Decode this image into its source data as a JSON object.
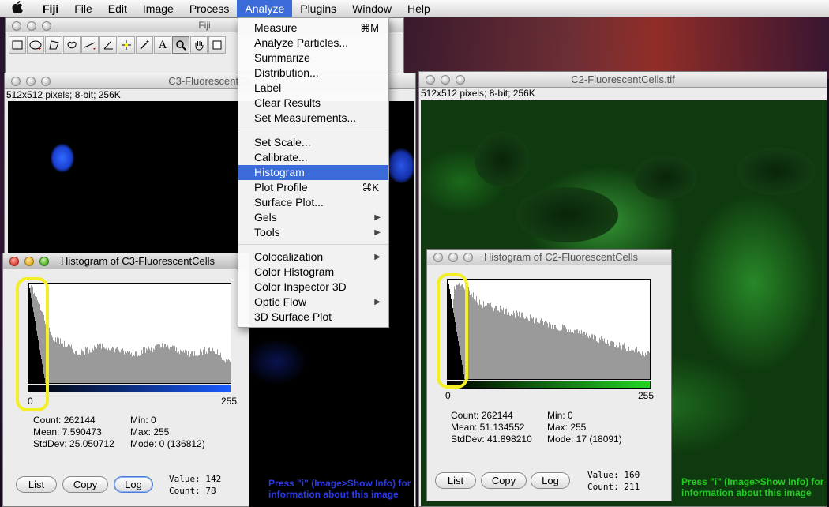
{
  "menubar": {
    "apple": "",
    "items": [
      "Fiji",
      "File",
      "Edit",
      "Image",
      "Process",
      "Analyze",
      "Plugins",
      "Window",
      "Help"
    ],
    "active": "Analyze"
  },
  "toolbar_window": {
    "title": "Fiji",
    "tools": [
      "rectangle-tool",
      "oval-tool",
      "polygon-tool",
      "freehand-tool",
      "line-tool",
      "angle-tool",
      "point-tool",
      "wand-tool",
      "text-tool",
      "magnifier-tool",
      "hand-tool",
      "dropper-tool"
    ],
    "text_tool_glyph": "A"
  },
  "analyze_menu": {
    "items": [
      {
        "label": "Measure",
        "shortcut": "⌘M"
      },
      {
        "label": "Analyze Particles..."
      },
      {
        "label": "Summarize"
      },
      {
        "label": "Distribution..."
      },
      {
        "label": "Label"
      },
      {
        "label": "Clear Results"
      },
      {
        "label": "Set Measurements..."
      },
      {
        "sep": true
      },
      {
        "label": "Set Scale..."
      },
      {
        "label": "Calibrate..."
      },
      {
        "label": "Histogram",
        "highlighted": true
      },
      {
        "label": "Plot Profile",
        "shortcut": "⌘K"
      },
      {
        "label": "Surface Plot..."
      },
      {
        "label": "Gels",
        "submenu": true
      },
      {
        "label": "Tools",
        "submenu": true
      },
      {
        "sep": true
      },
      {
        "label": "Colocalization",
        "submenu": true
      },
      {
        "label": "Color Histogram"
      },
      {
        "label": "Color Inspector 3D"
      },
      {
        "label": "Optic Flow",
        "submenu": true
      },
      {
        "label": "3D Surface Plot"
      }
    ],
    "submenu_arrow": "▶"
  },
  "c3_window": {
    "title": "C3-FluorescentCe",
    "info": "512x512 pixels; 8-bit; 256K"
  },
  "c2_window": {
    "title": "C2-FluorescentCells.tif",
    "info": "512x512 pixels; 8-bit; 256K"
  },
  "hist_c3": {
    "title": "Histogram of C3-FluorescentCells",
    "axis_min": "0",
    "axis_max": "255",
    "lut_color": "#1a5cff",
    "stats": {
      "count": "Count: 262144",
      "mean": "Mean: 7.590473",
      "stddev": "StdDev: 25.050712",
      "min": "Min: 0",
      "max": "Max: 255",
      "mode": "Mode: 0 (136812)"
    },
    "buttons": {
      "list": "List",
      "copy": "Copy",
      "log": "Log"
    },
    "value": "Value: 142",
    "count": "Count: 78",
    "hint": "Press \"i\" (Image>Show Info) for information about this image",
    "hint_color": "#2a3ae8"
  },
  "hist_c2": {
    "title": "Histogram of C2-FluorescentCells",
    "axis_min": "0",
    "axis_max": "255",
    "lut_color": "#22d622",
    "stats": {
      "count": "Count: 262144",
      "mean": "Mean: 51.134552",
      "stddev": "StdDev: 41.898210",
      "min": "Min: 0",
      "max": "Max: 255",
      "mode": "Mode: 17 (18091)"
    },
    "buttons": {
      "list": "List",
      "copy": "Copy",
      "log": "Log"
    },
    "value": "Value: 160",
    "count": "Count: 211",
    "hint": "Press \"i\" (Image>Show Info) for information about this image",
    "hint_color": "#22cc22"
  },
  "colors": {
    "highlight": "#3a6bd8",
    "annotation": "#f2ef24"
  }
}
